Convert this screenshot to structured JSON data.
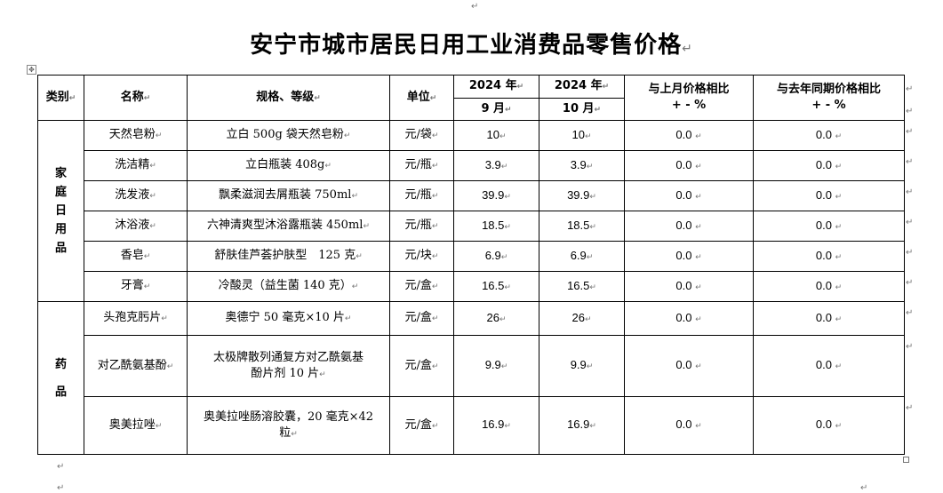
{
  "title": "安宁市城市居民日用工业消费品零售价格",
  "headers": {
    "category": "类别",
    "name": "名称",
    "spec": "规格、等级",
    "unit": "单位",
    "year1": "2024 年",
    "month1": "9 月",
    "year2": "2024 年",
    "month2": "10 月",
    "mom_line1": "与上月价格相比",
    "mom_line2": "+ - %",
    "yoy_line1": "与去年同期价格相比",
    "yoy_line2": "+ - %"
  },
  "categories": [
    {
      "label_chars": [
        "家",
        "庭",
        "日",
        "用",
        "品"
      ]
    },
    {
      "label_chars": [
        "药",
        "品"
      ]
    }
  ],
  "rows": [
    {
      "name": "天然皂粉",
      "spec": "立白 500g 袋天然皂粉",
      "unit": "元/袋",
      "sep": "10",
      "oct": "10",
      "mom": "0.0",
      "yoy": "0.0"
    },
    {
      "name": "洗洁精",
      "spec": "立白瓶装 408g",
      "unit": "元/瓶",
      "sep": "3.9",
      "oct": "3.9",
      "mom": "0.0",
      "yoy": "0.0"
    },
    {
      "name": "洗发液",
      "spec": "飘柔滋润去屑瓶装 750ml",
      "unit": "元/瓶",
      "sep": "39.9",
      "oct": "39.9",
      "mom": "0.0",
      "yoy": "0.0"
    },
    {
      "name": "沐浴液",
      "spec": "六神清爽型沐浴露瓶装 450ml",
      "unit": "元/瓶",
      "sep": "18.5",
      "oct": "18.5",
      "mom": "0.0",
      "yoy": "0.0"
    },
    {
      "name": "香皂",
      "spec": "舒肤佳芦荟护肤型　125 克",
      "unit": "元/块",
      "sep": "6.9",
      "oct": "6.9",
      "mom": "0.0",
      "yoy": "0.0"
    },
    {
      "name": "牙膏",
      "spec": "冷酸灵（益生菌 140 克）",
      "unit": "元/盒",
      "sep": "16.5",
      "oct": "16.5",
      "mom": "0.0",
      "yoy": "0.0"
    },
    {
      "name": "头孢克肟片",
      "spec": "奥德宁 50 毫克×10 片",
      "unit": "元/盒",
      "sep": "26",
      "oct": "26",
      "mom": "0.0",
      "yoy": "0.0"
    },
    {
      "name": "对乙酰氨基酚",
      "spec_line1": "太极牌散列通复方对乙酰氨基",
      "spec_line2": "酚片剂 10 片",
      "unit": "元/盒",
      "sep": "9.9",
      "oct": "9.9",
      "mom": "0.0",
      "yoy": "0.0"
    },
    {
      "name": "奥美拉唑",
      "spec_line1": "奥美拉唑肠溶胶囊，20 毫克×42",
      "spec_line2": "粒",
      "unit": "元/盒",
      "sep": "16.9",
      "oct": "16.9",
      "mom": "0.0",
      "yoy": "0.0"
    }
  ]
}
